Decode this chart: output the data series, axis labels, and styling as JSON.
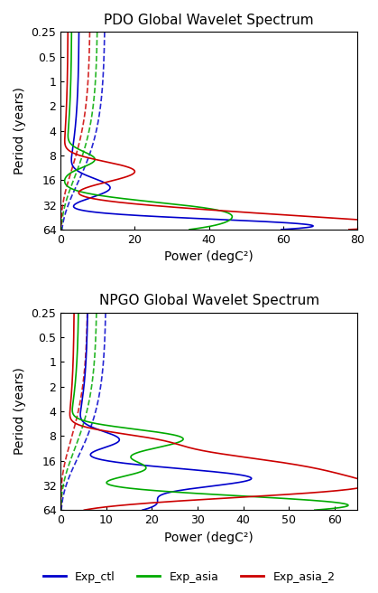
{
  "title_pdo": "PDO Global Wavelet Spectrum",
  "title_npgo": "NPGO Global Wavelet Spectrum",
  "xlabel": "Power (degC²)",
  "ylabel": "Period (years)",
  "legend_labels": [
    "Exp_ctl",
    "Exp_asia",
    "Exp_asia_2"
  ],
  "legend_colors": [
    "#0000cc",
    "#00aa00",
    "#cc0000"
  ],
  "xlim_pdo": [
    0,
    80
  ],
  "xlim_npgo": [
    0,
    65
  ],
  "xticks_pdo": [
    0,
    20,
    40,
    60,
    80
  ],
  "xticks_npgo": [
    0,
    10,
    20,
    30,
    40,
    50,
    60
  ],
  "ytick_labels": [
    "0.25",
    "0.5",
    "1",
    "2",
    "4",
    "8",
    "16",
    "32",
    "64"
  ],
  "ytick_values": [
    0.25,
    0.5,
    1,
    2,
    4,
    8,
    16,
    32,
    64
  ],
  "line_width": 1.2
}
